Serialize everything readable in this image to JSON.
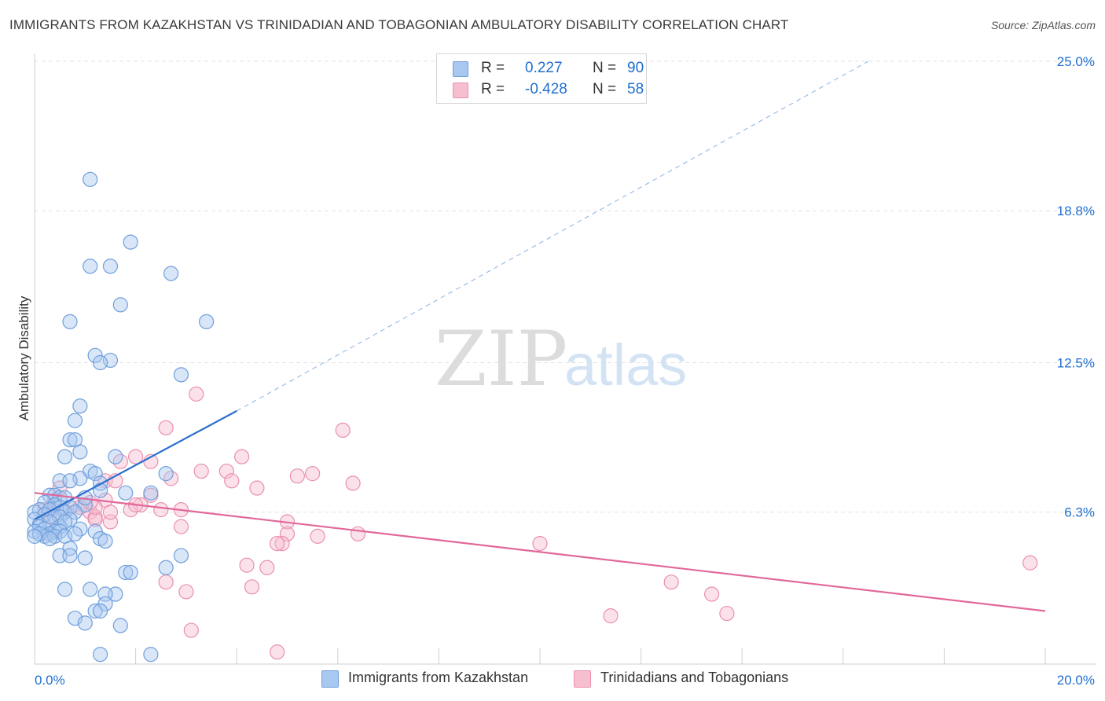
{
  "header": {
    "title": "IMMIGRANTS FROM KAZAKHSTAN VS TRINIDADIAN AND TOBAGONIAN AMBULATORY DISABILITY CORRELATION CHART",
    "source": "Source: ZipAtlas.com"
  },
  "watermark": {
    "zip": "ZIP",
    "atlas": "atlas"
  },
  "stats": {
    "series1": {
      "r_label": "R =",
      "r_value": "0.227",
      "n_label": "N =",
      "n_value": "90"
    },
    "series2": {
      "r_label": "R =",
      "r_value": "-0.428",
      "n_label": "N =",
      "n_value": "58"
    }
  },
  "legend": {
    "series1_label": "Immigrants from Kazakhstan",
    "series2_label": "Trinidadians and Tobagonians"
  },
  "colors": {
    "series1_fill": "#a9c8f0",
    "series1_stroke": "#6f9fdc",
    "series1_line": "#2a6fcf",
    "series2_fill": "#f6bfd0",
    "series2_stroke": "#ea8fae",
    "series2_line": "#e2689a",
    "tick_text": "#1f6fcf",
    "grid": "#e3e3e3"
  },
  "chart_data": {
    "type": "scatter",
    "title": "IMMIGRANTS FROM KAZAKHSTAN VS TRINIDADIAN AND TOBAGONIAN AMBULATORY DISABILITY CORRELATION CHART",
    "xlabel": "",
    "ylabel": "Ambulatory Disability",
    "xlim": [
      0,
      20
    ],
    "ylim": [
      0,
      25
    ],
    "x_tick_labels": [
      "0.0%",
      "20.0%"
    ],
    "y_ticks": [
      6.3,
      12.5,
      18.8,
      25.0
    ],
    "y_tick_labels": [
      "6.3%",
      "12.5%",
      "18.8%",
      "25.0%"
    ],
    "grid": true,
    "legend_position": "bottom",
    "series": [
      {
        "name": "Immigrants from Kazakhstan",
        "R": 0.227,
        "N": 90,
        "trend": {
          "x_solid": [
            0.0,
            4.0
          ],
          "y_solid": [
            6.0,
            10.5
          ],
          "x_dash": [
            4.0,
            16.5
          ],
          "y_dash": [
            10.5,
            25.0
          ]
        },
        "points": [
          [
            1.1,
            20.1
          ],
          [
            1.9,
            17.5
          ],
          [
            1.1,
            16.5
          ],
          [
            1.5,
            16.5
          ],
          [
            2.7,
            16.2
          ],
          [
            1.7,
            14.9
          ],
          [
            0.7,
            14.2
          ],
          [
            3.4,
            14.2
          ],
          [
            1.2,
            12.8
          ],
          [
            1.5,
            12.6
          ],
          [
            1.3,
            12.5
          ],
          [
            2.9,
            12.0
          ],
          [
            0.9,
            10.7
          ],
          [
            0.8,
            10.1
          ],
          [
            0.7,
            9.3
          ],
          [
            0.8,
            9.3
          ],
          [
            0.9,
            8.8
          ],
          [
            0.6,
            8.6
          ],
          [
            1.6,
            8.6
          ],
          [
            1.1,
            8.0
          ],
          [
            0.9,
            7.7
          ],
          [
            1.2,
            7.9
          ],
          [
            2.6,
            7.9
          ],
          [
            0.5,
            7.6
          ],
          [
            0.7,
            7.6
          ],
          [
            1.3,
            7.5
          ],
          [
            1.3,
            7.2
          ],
          [
            1.8,
            7.1
          ],
          [
            2.3,
            7.1
          ],
          [
            0.3,
            7.0
          ],
          [
            0.4,
            7.0
          ],
          [
            0.5,
            6.9
          ],
          [
            0.6,
            6.9
          ],
          [
            0.2,
            6.7
          ],
          [
            0.4,
            6.6
          ],
          [
            0.5,
            6.5
          ],
          [
            0.7,
            6.5
          ],
          [
            1.0,
            6.6
          ],
          [
            0.1,
            6.4
          ],
          [
            0.3,
            6.4
          ],
          [
            0.6,
            6.3
          ],
          [
            0.8,
            6.3
          ],
          [
            0.0,
            6.3
          ],
          [
            0.2,
            6.2
          ],
          [
            0.4,
            6.1
          ],
          [
            0.5,
            6.1
          ],
          [
            0.7,
            6.0
          ],
          [
            0.0,
            6.0
          ],
          [
            0.1,
            5.8
          ],
          [
            0.3,
            5.9
          ],
          [
            0.5,
            5.7
          ],
          [
            0.6,
            5.9
          ],
          [
            0.1,
            5.7
          ],
          [
            0.2,
            5.6
          ],
          [
            0.4,
            5.5
          ],
          [
            0.0,
            5.5
          ],
          [
            0.3,
            5.4
          ],
          [
            0.5,
            5.5
          ],
          [
            0.9,
            5.6
          ],
          [
            1.2,
            5.5
          ],
          [
            0.2,
            5.3
          ],
          [
            0.4,
            5.3
          ],
          [
            0.1,
            5.4
          ],
          [
            0.0,
            5.3
          ],
          [
            0.6,
            5.3
          ],
          [
            0.8,
            5.4
          ],
          [
            1.3,
            5.2
          ],
          [
            0.3,
            5.2
          ],
          [
            1.4,
            5.1
          ],
          [
            0.7,
            4.8
          ],
          [
            0.5,
            4.5
          ],
          [
            0.7,
            4.5
          ],
          [
            1.0,
            4.4
          ],
          [
            2.9,
            4.5
          ],
          [
            2.6,
            4.0
          ],
          [
            1.8,
            3.8
          ],
          [
            1.9,
            3.8
          ],
          [
            0.6,
            3.1
          ],
          [
            1.1,
            3.1
          ],
          [
            1.6,
            2.9
          ],
          [
            1.4,
            2.9
          ],
          [
            1.4,
            2.5
          ],
          [
            1.2,
            2.2
          ],
          [
            1.3,
            2.2
          ],
          [
            0.8,
            1.9
          ],
          [
            1.0,
            1.7
          ],
          [
            1.7,
            1.6
          ],
          [
            1.3,
            0.4
          ],
          [
            2.3,
            0.4
          ],
          [
            1.0,
            6.9
          ]
        ]
      },
      {
        "name": "Trinidadians and Tobagonians",
        "R": -0.428,
        "N": 58,
        "trend": {
          "x": [
            0.0,
            20.0
          ],
          "y": [
            7.1,
            2.2
          ]
        },
        "points": [
          [
            3.2,
            11.2
          ],
          [
            2.6,
            9.8
          ],
          [
            6.1,
            9.7
          ],
          [
            2.0,
            8.6
          ],
          [
            4.1,
            8.6
          ],
          [
            1.7,
            8.4
          ],
          [
            2.3,
            8.4
          ],
          [
            3.3,
            8.0
          ],
          [
            3.8,
            8.0
          ],
          [
            5.5,
            7.9
          ],
          [
            5.2,
            7.8
          ],
          [
            2.7,
            7.7
          ],
          [
            1.4,
            7.6
          ],
          [
            1.6,
            7.6
          ],
          [
            3.9,
            7.6
          ],
          [
            6.3,
            7.5
          ],
          [
            4.4,
            7.3
          ],
          [
            0.5,
            7.3
          ],
          [
            2.3,
            7.0
          ],
          [
            1.4,
            6.8
          ],
          [
            0.8,
            6.6
          ],
          [
            2.1,
            6.6
          ],
          [
            1.9,
            6.4
          ],
          [
            2.5,
            6.4
          ],
          [
            2.9,
            6.4
          ],
          [
            0.2,
            6.4
          ],
          [
            0.6,
            6.3
          ],
          [
            1.1,
            6.3
          ],
          [
            1.2,
            6.1
          ],
          [
            0.3,
            6.1
          ],
          [
            1.2,
            6.0
          ],
          [
            1.5,
            5.9
          ],
          [
            5.0,
            5.9
          ],
          [
            2.9,
            5.7
          ],
          [
            6.4,
            5.4
          ],
          [
            5.0,
            5.4
          ],
          [
            4.9,
            5.0
          ],
          [
            5.6,
            5.3
          ],
          [
            10.0,
            5.0
          ],
          [
            4.8,
            5.0
          ],
          [
            19.7,
            4.2
          ],
          [
            4.2,
            4.1
          ],
          [
            4.6,
            4.0
          ],
          [
            12.6,
            3.4
          ],
          [
            2.6,
            3.4
          ],
          [
            4.3,
            3.2
          ],
          [
            3.0,
            3.0
          ],
          [
            13.4,
            2.9
          ],
          [
            13.7,
            2.1
          ],
          [
            11.4,
            2.0
          ],
          [
            3.1,
            1.4
          ],
          [
            4.8,
            0.5
          ],
          [
            1.2,
            6.5
          ],
          [
            1.5,
            6.3
          ],
          [
            0.9,
            6.5
          ],
          [
            2.0,
            6.6
          ],
          [
            0.4,
            6.8
          ],
          [
            1.1,
            6.7
          ]
        ]
      }
    ]
  }
}
